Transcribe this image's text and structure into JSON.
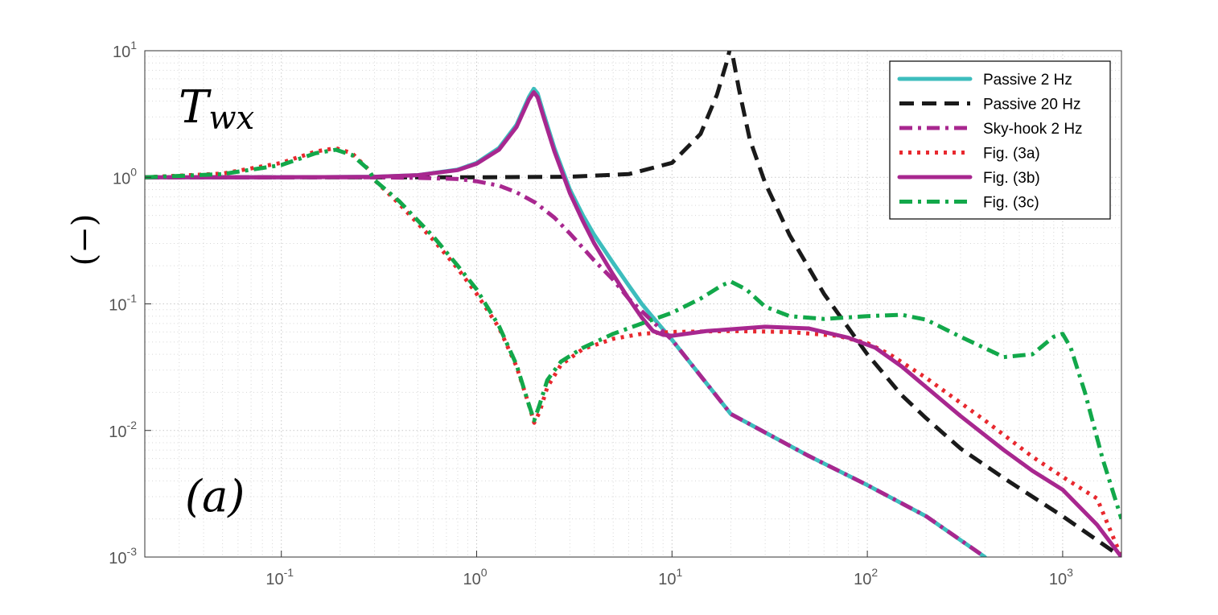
{
  "chart_data": {
    "type": "line",
    "title": "",
    "xlabel": "",
    "ylabel": "(−)",
    "xscale": "log",
    "yscale": "log",
    "xlim": [
      0.02,
      2000
    ],
    "ylim": [
      0.001,
      10
    ],
    "grid": true,
    "minor_grid": true,
    "legend_position": "top-right",
    "annotations": {
      "top_left": "Twx",
      "bottom_left": "(a)"
    },
    "x_ticks": [
      {
        "value": 0.1,
        "mantissa": "10",
        "exponent": "-1"
      },
      {
        "value": 1,
        "mantissa": "10",
        "exponent": "0"
      },
      {
        "value": 10,
        "mantissa": "10",
        "exponent": "1"
      },
      {
        "value": 100,
        "mantissa": "10",
        "exponent": "2"
      },
      {
        "value": 1000,
        "mantissa": "10",
        "exponent": "3"
      }
    ],
    "y_ticks": [
      {
        "value": 0.001,
        "mantissa": "10",
        "exponent": "-3"
      },
      {
        "value": 0.01,
        "mantissa": "10",
        "exponent": "-2"
      },
      {
        "value": 0.1,
        "mantissa": "10",
        "exponent": "-1"
      },
      {
        "value": 1,
        "mantissa": "10",
        "exponent": "0"
      },
      {
        "value": 10,
        "mantissa": "10",
        "exponent": "1"
      }
    ],
    "series": [
      {
        "name": "Passive 2 Hz",
        "color": "#3dbdbd",
        "dash": "solid",
        "width": 5,
        "points": [
          [
            0.02,
            1.0
          ],
          [
            0.1,
            1.0
          ],
          [
            0.3,
            1.01
          ],
          [
            0.5,
            1.04
          ],
          [
            0.8,
            1.15
          ],
          [
            1.0,
            1.3
          ],
          [
            1.3,
            1.7
          ],
          [
            1.6,
            2.6
          ],
          [
            1.85,
            4.3
          ],
          [
            1.96,
            5.0
          ],
          [
            2.05,
            4.6
          ],
          [
            2.2,
            3.2
          ],
          [
            2.5,
            1.7
          ],
          [
            3.0,
            0.8
          ],
          [
            3.5,
            0.5
          ],
          [
            4.0,
            0.35
          ],
          [
            5.0,
            0.21
          ],
          [
            6.0,
            0.14
          ],
          [
            7.0,
            0.1
          ],
          [
            8.0,
            0.078
          ],
          [
            10.0,
            0.052
          ],
          [
            20.0,
            0.0135
          ],
          [
            50.0,
            0.0063
          ],
          [
            100.0,
            0.0037
          ],
          [
            200.0,
            0.0021
          ],
          [
            400.0,
            0.001
          ]
        ]
      },
      {
        "name": "Passive 20 Hz",
        "color": "#1a1a1a",
        "dash": "dash",
        "width": 5,
        "points": [
          [
            0.02,
            1.0
          ],
          [
            1.0,
            1.0
          ],
          [
            3.0,
            1.01
          ],
          [
            6.0,
            1.06
          ],
          [
            10.0,
            1.3
          ],
          [
            14.0,
            2.2
          ],
          [
            17.0,
            4.5
          ],
          [
            19.0,
            8.0
          ],
          [
            20.0,
            11.0
          ],
          [
            22.0,
            5.0
          ],
          [
            25.0,
            2.0
          ],
          [
            30.0,
            0.9
          ],
          [
            40.0,
            0.35
          ],
          [
            60.0,
            0.12
          ],
          [
            100.0,
            0.04
          ],
          [
            150.0,
            0.019
          ],
          [
            200.0,
            0.0125
          ],
          [
            300.0,
            0.0072
          ],
          [
            500.0,
            0.0042
          ],
          [
            1000.0,
            0.0021
          ],
          [
            2000.0,
            0.001
          ]
        ]
      },
      {
        "name": "Sky-hook 2 Hz",
        "color": "#a8278f",
        "dash": "dashdot",
        "width": 5,
        "points": [
          [
            0.02,
            1.0
          ],
          [
            0.3,
            1.0
          ],
          [
            0.5,
            0.99
          ],
          [
            0.8,
            0.97
          ],
          [
            1.0,
            0.93
          ],
          [
            1.3,
            0.86
          ],
          [
            1.6,
            0.76
          ],
          [
            2.0,
            0.63
          ],
          [
            2.5,
            0.48
          ],
          [
            3.0,
            0.36
          ],
          [
            4.0,
            0.22
          ],
          [
            5.0,
            0.155
          ],
          [
            6.0,
            0.11
          ],
          [
            8.0,
            0.072
          ],
          [
            10.0,
            0.052
          ],
          [
            20.0,
            0.0135
          ],
          [
            50.0,
            0.0063
          ],
          [
            100.0,
            0.0037
          ],
          [
            200.0,
            0.0021
          ],
          [
            400.0,
            0.001
          ]
        ]
      },
      {
        "name": "Fig. (3a)",
        "color": "#e8282e",
        "dash": "dot",
        "width": 5,
        "points": [
          [
            0.02,
            1.0
          ],
          [
            0.05,
            1.07
          ],
          [
            0.1,
            1.3
          ],
          [
            0.15,
            1.6
          ],
          [
            0.19,
            1.7
          ],
          [
            0.23,
            1.55
          ],
          [
            0.28,
            1.15
          ],
          [
            0.3,
            0.95
          ],
          [
            0.4,
            0.62
          ],
          [
            0.6,
            0.32
          ],
          [
            0.8,
            0.19
          ],
          [
            1.0,
            0.12
          ],
          [
            1.3,
            0.065
          ],
          [
            1.6,
            0.032
          ],
          [
            1.85,
            0.016
          ],
          [
            1.97,
            0.0115
          ],
          [
            2.1,
            0.014
          ],
          [
            2.3,
            0.022
          ],
          [
            2.7,
            0.033
          ],
          [
            3.5,
            0.044
          ],
          [
            5.0,
            0.053
          ],
          [
            7.0,
            0.058
          ],
          [
            10.0,
            0.06
          ],
          [
            20.0,
            0.061
          ],
          [
            40.0,
            0.06
          ],
          [
            70.0,
            0.056
          ],
          [
            100.0,
            0.049
          ],
          [
            130.0,
            0.04
          ],
          [
            200.0,
            0.026
          ],
          [
            400.0,
            0.012
          ],
          [
            700.0,
            0.0062
          ],
          [
            1000.0,
            0.0043
          ],
          [
            1500.0,
            0.0029
          ],
          [
            2000.0,
            0.001
          ]
        ]
      },
      {
        "name": "Fig. (3b)",
        "color": "#a8278f",
        "dash": "solid",
        "width": 5,
        "points": [
          [
            0.02,
            1.0
          ],
          [
            0.1,
            1.0
          ],
          [
            0.3,
            1.01
          ],
          [
            0.5,
            1.04
          ],
          [
            0.8,
            1.14
          ],
          [
            1.0,
            1.28
          ],
          [
            1.3,
            1.65
          ],
          [
            1.6,
            2.5
          ],
          [
            1.85,
            4.1
          ],
          [
            1.96,
            4.7
          ],
          [
            2.05,
            4.3
          ],
          [
            2.2,
            3.0
          ],
          [
            2.5,
            1.6
          ],
          [
            3.0,
            0.75
          ],
          [
            3.5,
            0.45
          ],
          [
            4.0,
            0.3
          ],
          [
            5.0,
            0.17
          ],
          [
            6.0,
            0.11
          ],
          [
            7.0,
            0.078
          ],
          [
            8.0,
            0.061
          ],
          [
            9.0,
            0.057
          ],
          [
            10.0,
            0.056
          ],
          [
            15.0,
            0.061
          ],
          [
            30.0,
            0.066
          ],
          [
            50.0,
            0.064
          ],
          [
            80.0,
            0.054
          ],
          [
            110.0,
            0.045
          ],
          [
            150.0,
            0.032
          ],
          [
            200.0,
            0.022
          ],
          [
            300.0,
            0.013
          ],
          [
            500.0,
            0.007
          ],
          [
            700.0,
            0.0048
          ],
          [
            1000.0,
            0.0034
          ],
          [
            1500.0,
            0.0018
          ],
          [
            2000.0,
            0.001
          ]
        ]
      },
      {
        "name": "Fig. (3c)",
        "color": "#12a84a",
        "dash": "dashdot",
        "width": 5,
        "points": [
          [
            0.02,
            1.0
          ],
          [
            0.05,
            1.06
          ],
          [
            0.1,
            1.25
          ],
          [
            0.15,
            1.55
          ],
          [
            0.19,
            1.65
          ],
          [
            0.23,
            1.5
          ],
          [
            0.28,
            1.15
          ],
          [
            0.3,
            0.95
          ],
          [
            0.4,
            0.65
          ],
          [
            0.6,
            0.34
          ],
          [
            0.8,
            0.2
          ],
          [
            1.0,
            0.13
          ],
          [
            1.3,
            0.067
          ],
          [
            1.6,
            0.033
          ],
          [
            1.85,
            0.016
          ],
          [
            1.97,
            0.012
          ],
          [
            2.1,
            0.016
          ],
          [
            2.3,
            0.025
          ],
          [
            2.7,
            0.035
          ],
          [
            3.5,
            0.045
          ],
          [
            5.0,
            0.058
          ],
          [
            7.0,
            0.07
          ],
          [
            10.0,
            0.085
          ],
          [
            14.0,
            0.11
          ],
          [
            18.0,
            0.14
          ],
          [
            20.0,
            0.15
          ],
          [
            24.0,
            0.13
          ],
          [
            30.0,
            0.095
          ],
          [
            40.0,
            0.08
          ],
          [
            60.0,
            0.076
          ],
          [
            100.0,
            0.08
          ],
          [
            150.0,
            0.082
          ],
          [
            200.0,
            0.075
          ],
          [
            300.0,
            0.055
          ],
          [
            500.0,
            0.038
          ],
          [
            700.0,
            0.04
          ],
          [
            900.0,
            0.055
          ],
          [
            1000.0,
            0.058
          ],
          [
            1100.0,
            0.045
          ],
          [
            1300.0,
            0.02
          ],
          [
            1600.0,
            0.006
          ],
          [
            2000.0,
            0.002
          ]
        ]
      }
    ]
  }
}
